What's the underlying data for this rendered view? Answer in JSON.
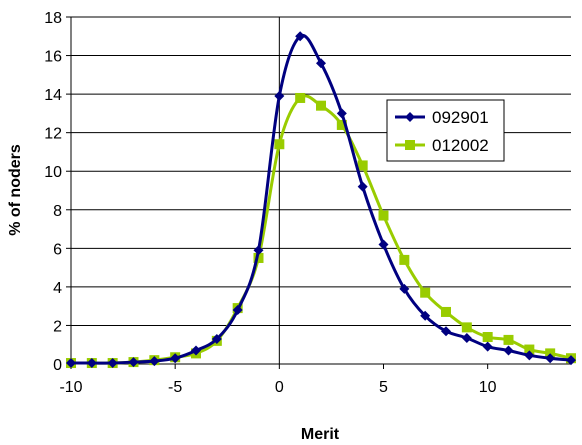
{
  "chart_data": {
    "type": "line",
    "title": "",
    "xlabel": "Merit",
    "ylabel": "% of noders",
    "xlim": [
      -10,
      14
    ],
    "ylim": [
      0,
      18
    ],
    "x_ticks": [
      -10,
      -5,
      0,
      5,
      10
    ],
    "y_ticks": [
      0,
      2,
      4,
      6,
      8,
      10,
      12,
      14,
      16,
      18
    ],
    "grid": "horizontal",
    "legend_position": "right",
    "series": [
      {
        "name": "092901",
        "color": "#000080",
        "marker": "diamond",
        "x": [
          -10,
          -9,
          -8,
          -7,
          -6,
          -5,
          -4,
          -3,
          -2,
          -1,
          0,
          1,
          2,
          3,
          4,
          5,
          6,
          7,
          8,
          9,
          10,
          11,
          12,
          13,
          14
        ],
        "values": [
          0.05,
          0.05,
          0.05,
          0.1,
          0.15,
          0.3,
          0.7,
          1.3,
          2.8,
          5.9,
          13.9,
          17.0,
          15.6,
          13.0,
          9.2,
          6.2,
          3.9,
          2.5,
          1.7,
          1.35,
          0.9,
          0.7,
          0.45,
          0.3,
          0.2
        ]
      },
      {
        "name": "012002",
        "color": "#99cc00",
        "marker": "square",
        "x": [
          -10,
          -9,
          -8,
          -7,
          -6,
          -5,
          -4,
          -3,
          -2,
          -1,
          0,
          1,
          2,
          3,
          4,
          5,
          6,
          7,
          8,
          9,
          10,
          11,
          12,
          13,
          14
        ],
        "values": [
          0.05,
          0.05,
          0.05,
          0.1,
          0.2,
          0.35,
          0.55,
          1.2,
          2.9,
          5.5,
          11.4,
          13.8,
          13.4,
          12.4,
          10.3,
          7.7,
          5.4,
          3.7,
          2.7,
          1.9,
          1.4,
          1.25,
          0.75,
          0.55,
          0.3
        ]
      }
    ]
  }
}
